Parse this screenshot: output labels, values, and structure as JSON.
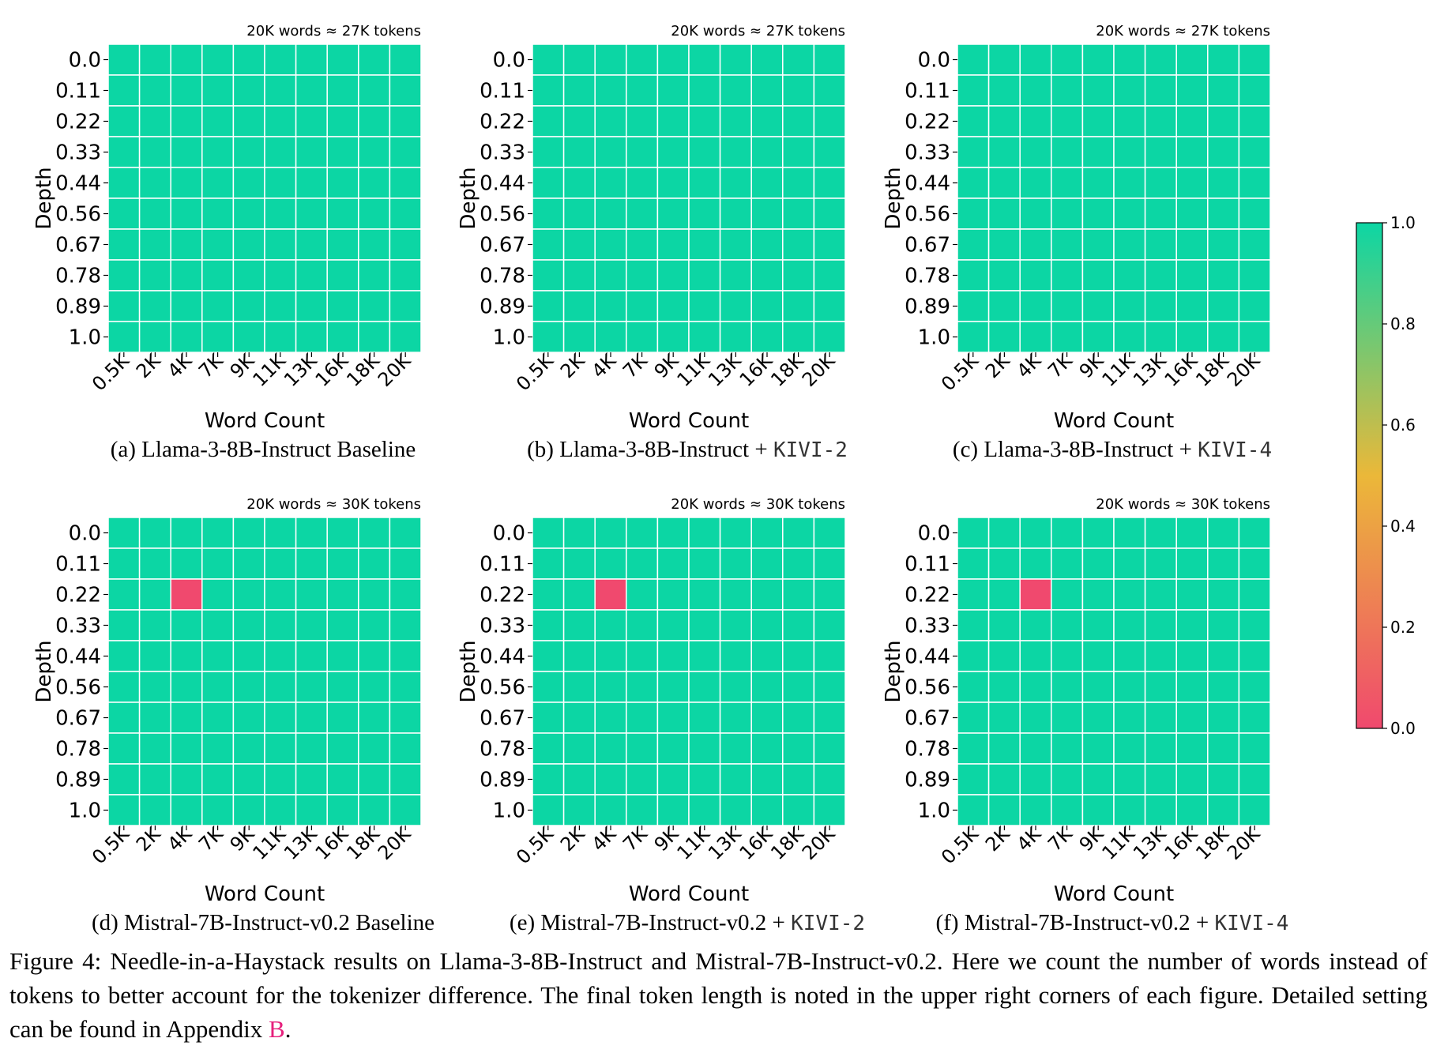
{
  "chart_data": [
    {
      "type": "heatmap",
      "panel": "a",
      "token_note": "20K words ≈ 27K tokens",
      "caption": "(a) Llama-3-8B-Instruct Baseline",
      "caption_main": "(a) Llama-3-8B-Instruct Baseline",
      "caption_code": "",
      "xlabel": "Word Count",
      "ylabel": "Depth",
      "x": [
        "0.5K",
        "2K",
        "4K",
        "7K",
        "9K",
        "11K",
        "13K",
        "16K",
        "18K",
        "20K"
      ],
      "y": [
        "0.0",
        "0.11",
        "0.22",
        "0.33",
        "0.44",
        "0.56",
        "0.67",
        "0.78",
        "0.89",
        "1.0"
      ],
      "values": [
        [
          1,
          1,
          1,
          1,
          1,
          1,
          1,
          1,
          1,
          1
        ],
        [
          1,
          1,
          1,
          1,
          1,
          1,
          1,
          1,
          1,
          1
        ],
        [
          1,
          1,
          1,
          1,
          1,
          1,
          1,
          1,
          1,
          1
        ],
        [
          1,
          1,
          1,
          1,
          1,
          1,
          1,
          1,
          1,
          1
        ],
        [
          1,
          1,
          1,
          1,
          1,
          1,
          1,
          1,
          1,
          1
        ],
        [
          1,
          1,
          1,
          1,
          1,
          1,
          1,
          1,
          1,
          1
        ],
        [
          1,
          1,
          1,
          1,
          1,
          1,
          1,
          1,
          1,
          1
        ],
        [
          1,
          1,
          1,
          1,
          1,
          1,
          1,
          1,
          1,
          1
        ],
        [
          1,
          1,
          1,
          1,
          1,
          1,
          1,
          1,
          1,
          1
        ],
        [
          1,
          1,
          1,
          1,
          1,
          1,
          1,
          1,
          1,
          1
        ]
      ]
    },
    {
      "type": "heatmap",
      "panel": "b",
      "token_note": "20K words ≈ 27K tokens",
      "caption": "(b) Llama-3-8B-Instruct + KIVI-2",
      "caption_main": "(b) Llama-3-8B-Instruct + ",
      "caption_code": "KIVI-2",
      "xlabel": "Word Count",
      "ylabel": "Depth",
      "x": [
        "0.5K",
        "2K",
        "4K",
        "7K",
        "9K",
        "11K",
        "13K",
        "16K",
        "18K",
        "20K"
      ],
      "y": [
        "0.0",
        "0.11",
        "0.22",
        "0.33",
        "0.44",
        "0.56",
        "0.67",
        "0.78",
        "0.89",
        "1.0"
      ],
      "values": [
        [
          1,
          1,
          1,
          1,
          1,
          1,
          1,
          1,
          1,
          1
        ],
        [
          1,
          1,
          1,
          1,
          1,
          1,
          1,
          1,
          1,
          1
        ],
        [
          1,
          1,
          1,
          1,
          1,
          1,
          1,
          1,
          1,
          1
        ],
        [
          1,
          1,
          1,
          1,
          1,
          1,
          1,
          1,
          1,
          1
        ],
        [
          1,
          1,
          1,
          1,
          1,
          1,
          1,
          1,
          1,
          1
        ],
        [
          1,
          1,
          1,
          1,
          1,
          1,
          1,
          1,
          1,
          1
        ],
        [
          1,
          1,
          1,
          1,
          1,
          1,
          1,
          1,
          1,
          1
        ],
        [
          1,
          1,
          1,
          1,
          1,
          1,
          1,
          1,
          1,
          1
        ],
        [
          1,
          1,
          1,
          1,
          1,
          1,
          1,
          1,
          1,
          1
        ],
        [
          1,
          1,
          1,
          1,
          1,
          1,
          1,
          1,
          1,
          1
        ]
      ]
    },
    {
      "type": "heatmap",
      "panel": "c",
      "token_note": "20K words ≈ 27K tokens",
      "caption": "(c) Llama-3-8B-Instruct + KIVI-4",
      "caption_main": "(c) Llama-3-8B-Instruct + ",
      "caption_code": "KIVI-4",
      "xlabel": "Word Count",
      "ylabel": "Depth",
      "x": [
        "0.5K",
        "2K",
        "4K",
        "7K",
        "9K",
        "11K",
        "13K",
        "16K",
        "18K",
        "20K"
      ],
      "y": [
        "0.0",
        "0.11",
        "0.22",
        "0.33",
        "0.44",
        "0.56",
        "0.67",
        "0.78",
        "0.89",
        "1.0"
      ],
      "values": [
        [
          1,
          1,
          1,
          1,
          1,
          1,
          1,
          1,
          1,
          1
        ],
        [
          1,
          1,
          1,
          1,
          1,
          1,
          1,
          1,
          1,
          1
        ],
        [
          1,
          1,
          1,
          1,
          1,
          1,
          1,
          1,
          1,
          1
        ],
        [
          1,
          1,
          1,
          1,
          1,
          1,
          1,
          1,
          1,
          1
        ],
        [
          1,
          1,
          1,
          1,
          1,
          1,
          1,
          1,
          1,
          1
        ],
        [
          1,
          1,
          1,
          1,
          1,
          1,
          1,
          1,
          1,
          1
        ],
        [
          1,
          1,
          1,
          1,
          1,
          1,
          1,
          1,
          1,
          1
        ],
        [
          1,
          1,
          1,
          1,
          1,
          1,
          1,
          1,
          1,
          1
        ],
        [
          1,
          1,
          1,
          1,
          1,
          1,
          1,
          1,
          1,
          1
        ],
        [
          1,
          1,
          1,
          1,
          1,
          1,
          1,
          1,
          1,
          1
        ]
      ]
    },
    {
      "type": "heatmap",
      "panel": "d",
      "token_note": "20K words ≈ 30K tokens",
      "caption": "(d) Mistral-7B-Instruct-v0.2 Baseline",
      "caption_main": "(d) Mistral-7B-Instruct-v0.2 Baseline",
      "caption_code": "",
      "xlabel": "Word Count",
      "ylabel": "Depth",
      "x": [
        "0.5K",
        "2K",
        "4K",
        "7K",
        "9K",
        "11K",
        "13K",
        "16K",
        "18K",
        "20K"
      ],
      "y": [
        "0.0",
        "0.11",
        "0.22",
        "0.33",
        "0.44",
        "0.56",
        "0.67",
        "0.78",
        "0.89",
        "1.0"
      ],
      "values": [
        [
          1,
          1,
          1,
          1,
          1,
          1,
          1,
          1,
          1,
          1
        ],
        [
          1,
          1,
          1,
          1,
          1,
          1,
          1,
          1,
          1,
          1
        ],
        [
          1,
          1,
          0,
          1,
          1,
          1,
          1,
          1,
          1,
          1
        ],
        [
          1,
          1,
          1,
          1,
          1,
          1,
          1,
          1,
          1,
          1
        ],
        [
          1,
          1,
          1,
          1,
          1,
          1,
          1,
          1,
          1,
          1
        ],
        [
          1,
          1,
          1,
          1,
          1,
          1,
          1,
          1,
          1,
          1
        ],
        [
          1,
          1,
          1,
          1,
          1,
          1,
          1,
          1,
          1,
          1
        ],
        [
          1,
          1,
          1,
          1,
          1,
          1,
          1,
          1,
          1,
          1
        ],
        [
          1,
          1,
          1,
          1,
          1,
          1,
          1,
          1,
          1,
          1
        ],
        [
          1,
          1,
          1,
          1,
          1,
          1,
          1,
          1,
          1,
          1
        ]
      ]
    },
    {
      "type": "heatmap",
      "panel": "e",
      "token_note": "20K words ≈ 30K tokens",
      "caption": "(e) Mistral-7B-Instruct-v0.2 + KIVI-2",
      "caption_main": "(e) Mistral-7B-Instruct-v0.2 + ",
      "caption_code": "KIVI-2",
      "xlabel": "Word Count",
      "ylabel": "Depth",
      "x": [
        "0.5K",
        "2K",
        "4K",
        "7K",
        "9K",
        "11K",
        "13K",
        "16K",
        "18K",
        "20K"
      ],
      "y": [
        "0.0",
        "0.11",
        "0.22",
        "0.33",
        "0.44",
        "0.56",
        "0.67",
        "0.78",
        "0.89",
        "1.0"
      ],
      "values": [
        [
          1,
          1,
          1,
          1,
          1,
          1,
          1,
          1,
          1,
          1
        ],
        [
          1,
          1,
          1,
          1,
          1,
          1,
          1,
          1,
          1,
          1
        ],
        [
          1,
          1,
          0,
          1,
          1,
          1,
          1,
          1,
          1,
          1
        ],
        [
          1,
          1,
          1,
          1,
          1,
          1,
          1,
          1,
          1,
          1
        ],
        [
          1,
          1,
          1,
          1,
          1,
          1,
          1,
          1,
          1,
          1
        ],
        [
          1,
          1,
          1,
          1,
          1,
          1,
          1,
          1,
          1,
          1
        ],
        [
          1,
          1,
          1,
          1,
          1,
          1,
          1,
          1,
          1,
          1
        ],
        [
          1,
          1,
          1,
          1,
          1,
          1,
          1,
          1,
          1,
          1
        ],
        [
          1,
          1,
          1,
          1,
          1,
          1,
          1,
          1,
          1,
          1
        ],
        [
          1,
          1,
          1,
          1,
          1,
          1,
          1,
          1,
          1,
          1
        ]
      ]
    },
    {
      "type": "heatmap",
      "panel": "f",
      "token_note": "20K words ≈ 30K tokens",
      "caption": "(f) Mistral-7B-Instruct-v0.2 + KIVI-4",
      "caption_main": "(f) Mistral-7B-Instruct-v0.2 + ",
      "caption_code": "KIVI-4",
      "xlabel": "Word Count",
      "ylabel": "Depth",
      "x": [
        "0.5K",
        "2K",
        "4K",
        "7K",
        "9K",
        "11K",
        "13K",
        "16K",
        "18K",
        "20K"
      ],
      "y": [
        "0.0",
        "0.11",
        "0.22",
        "0.33",
        "0.44",
        "0.56",
        "0.67",
        "0.78",
        "0.89",
        "1.0"
      ],
      "values": [
        [
          1,
          1,
          1,
          1,
          1,
          1,
          1,
          1,
          1,
          1
        ],
        [
          1,
          1,
          1,
          1,
          1,
          1,
          1,
          1,
          1,
          1
        ],
        [
          1,
          1,
          0,
          1,
          1,
          1,
          1,
          1,
          1,
          1
        ],
        [
          1,
          1,
          1,
          1,
          1,
          1,
          1,
          1,
          1,
          1
        ],
        [
          1,
          1,
          1,
          1,
          1,
          1,
          1,
          1,
          1,
          1
        ],
        [
          1,
          1,
          1,
          1,
          1,
          1,
          1,
          1,
          1,
          1
        ],
        [
          1,
          1,
          1,
          1,
          1,
          1,
          1,
          1,
          1,
          1
        ],
        [
          1,
          1,
          1,
          1,
          1,
          1,
          1,
          1,
          1,
          1
        ],
        [
          1,
          1,
          1,
          1,
          1,
          1,
          1,
          1,
          1,
          1
        ],
        [
          1,
          1,
          1,
          1,
          1,
          1,
          1,
          1,
          1,
          1
        ]
      ]
    }
  ],
  "colorbar": {
    "ticks": [
      "1.0",
      "0.8",
      "0.6",
      "0.4",
      "0.2",
      "0.0"
    ],
    "range": [
      0,
      1
    ],
    "colors": [
      "#F0496E",
      "#EBB839",
      "#0CD6A4"
    ]
  },
  "figure_caption": {
    "before_link": "Figure 4: Needle-in-a-Haystack results on Llama-3-8B-Instruct and Mistral-7B-Instruct-v0.2. Here we count the number of words instead of tokens to better account for the tokenizer difference. The final token length is noted in the upper right corners of each figure. Detailed setting can be found in Appendix ",
    "link": "B",
    "after_link": "."
  }
}
